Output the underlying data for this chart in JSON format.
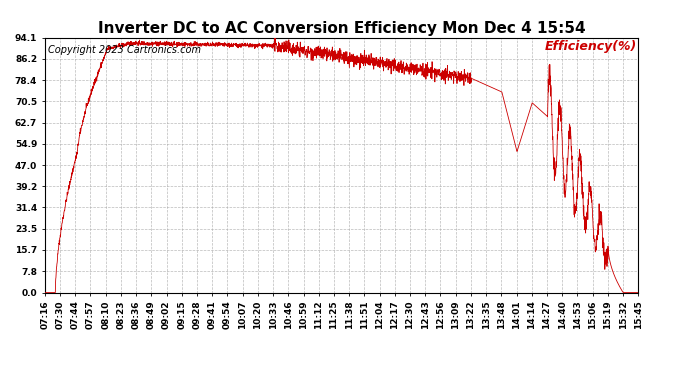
{
  "title": "Inverter DC to AC Conversion Efficiency Mon Dec 4 15:54",
  "copyright": "Copyright 2023 Cartronics.com",
  "legend_label": "Efficiency(%)",
  "line_color": "#cc0000",
  "background_color": "#ffffff",
  "grid_color": "#aaaaaa",
  "yticks": [
    0.0,
    7.8,
    15.7,
    23.5,
    31.4,
    39.2,
    47.0,
    54.9,
    62.7,
    70.5,
    78.4,
    86.2,
    94.1
  ],
  "xtick_labels": [
    "07:16",
    "07:30",
    "07:44",
    "07:57",
    "08:10",
    "08:23",
    "08:36",
    "08:49",
    "09:02",
    "09:15",
    "09:28",
    "09:41",
    "09:54",
    "10:07",
    "10:20",
    "10:33",
    "10:46",
    "10:59",
    "11:12",
    "11:25",
    "11:38",
    "11:51",
    "12:04",
    "12:17",
    "12:30",
    "12:43",
    "12:56",
    "13:09",
    "13:22",
    "13:35",
    "13:48",
    "14:01",
    "14:14",
    "14:27",
    "14:40",
    "14:53",
    "15:06",
    "15:19",
    "15:32",
    "15:45"
  ],
  "title_fontsize": 11,
  "copyright_fontsize": 7,
  "legend_fontsize": 9,
  "tick_fontsize": 6.5,
  "ylabel_color": "#cc0000",
  "ylim": [
    0.0,
    94.1
  ],
  "figsize": [
    6.9,
    3.75
  ],
  "dpi": 100
}
